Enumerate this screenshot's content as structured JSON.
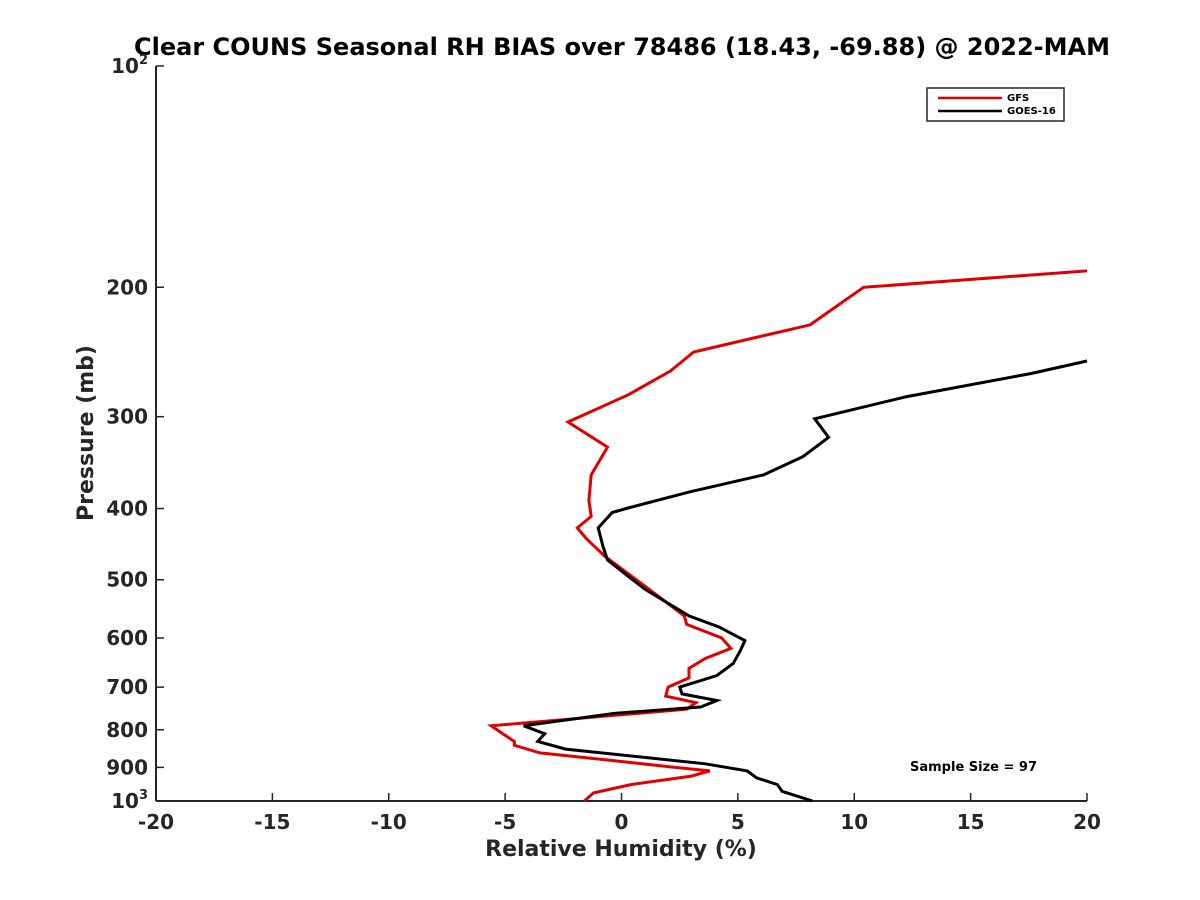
{
  "chart_data": {
    "type": "line",
    "title": "Clear COUNS Seasonal RH BIAS over 78486 (18.43, -69.88) @ 2022-MAM",
    "xlabel": "Relative Humidity (%)",
    "ylabel": "Pressure (mb)",
    "xlim": [
      -20,
      20
    ],
    "ylim": [
      100,
      1000
    ],
    "yscale": "log",
    "y_reversed": true,
    "x_ticks": [
      "-20",
      "-15",
      "-10",
      "-5",
      "0",
      "5",
      "10",
      "15",
      "20"
    ],
    "y_ticks": [
      {
        "base": "10",
        "exp": "2"
      },
      {
        "base": "200",
        "exp": ""
      },
      {
        "base": "300",
        "exp": ""
      },
      {
        "base": "400",
        "exp": ""
      },
      {
        "base": "500",
        "exp": ""
      },
      {
        "base": "600",
        "exp": ""
      },
      {
        "base": "700",
        "exp": ""
      },
      {
        "base": "800",
        "exp": ""
      },
      {
        "base": "900",
        "exp": ""
      },
      {
        "base": "10",
        "exp": "3"
      }
    ],
    "annotation": "Sample Size = 97",
    "legend_position": "top-right",
    "series": [
      {
        "name": "GFS",
        "color": "#e00000",
        "points": [
          [
            -1.6,
            1000
          ],
          [
            -1.2,
            975
          ],
          [
            0.4,
            950
          ],
          [
            3.0,
            925
          ],
          [
            3.8,
            910
          ],
          [
            2.3,
            900
          ],
          [
            -0.5,
            880
          ],
          [
            -3.5,
            860
          ],
          [
            -4.6,
            840
          ],
          [
            -4.6,
            830
          ],
          [
            -5.1,
            810
          ],
          [
            -5.6,
            790
          ],
          [
            2.8,
            750
          ],
          [
            3.2,
            735
          ],
          [
            1.9,
            720
          ],
          [
            2.0,
            700
          ],
          [
            2.9,
            680
          ],
          [
            2.9,
            660
          ],
          [
            3.6,
            640
          ],
          [
            4.7,
            620
          ],
          [
            4.3,
            600
          ],
          [
            2.8,
            575
          ],
          [
            2.7,
            560
          ],
          [
            1.0,
            510
          ],
          [
            -0.7,
            465
          ],
          [
            -1.5,
            440
          ],
          [
            -1.9,
            425
          ],
          [
            -1.3,
            410
          ],
          [
            -1.4,
            390
          ],
          [
            -1.3,
            360
          ],
          [
            -0.6,
            330
          ],
          [
            -2.3,
            305
          ],
          [
            0.3,
            280
          ],
          [
            2.1,
            260
          ],
          [
            3.1,
            245
          ],
          [
            8.1,
            225
          ],
          [
            10.4,
            200
          ],
          [
            20.0,
            190
          ]
        ]
      },
      {
        "name": "GOES-16",
        "color": "#000000",
        "points": [
          [
            8.2,
            1000
          ],
          [
            6.9,
            970
          ],
          [
            6.7,
            950
          ],
          [
            5.8,
            930
          ],
          [
            5.4,
            910
          ],
          [
            3.6,
            890
          ],
          [
            -2.4,
            850
          ],
          [
            -3.6,
            830
          ],
          [
            -3.3,
            810
          ],
          [
            -4.2,
            790
          ],
          [
            -0.3,
            760
          ],
          [
            3.4,
            745
          ],
          [
            4.1,
            730
          ],
          [
            2.6,
            715
          ],
          [
            2.5,
            700
          ],
          [
            4.1,
            675
          ],
          [
            4.8,
            650
          ],
          [
            5.1,
            625
          ],
          [
            5.3,
            605
          ],
          [
            4.2,
            580
          ],
          [
            2.9,
            560
          ],
          [
            1.0,
            515
          ],
          [
            -0.6,
            470
          ],
          [
            -0.8,
            450
          ],
          [
            -1.0,
            425
          ],
          [
            -0.4,
            405
          ],
          [
            0.2,
            400
          ],
          [
            2.9,
            380
          ],
          [
            6.1,
            360
          ],
          [
            7.8,
            340
          ],
          [
            8.9,
            320
          ],
          [
            8.3,
            302
          ],
          [
            12.2,
            282
          ],
          [
            17.6,
            262
          ],
          [
            20.0,
            252
          ]
        ]
      }
    ]
  }
}
